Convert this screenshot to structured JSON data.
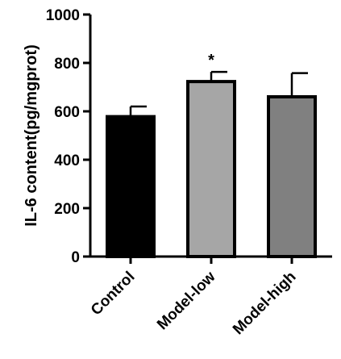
{
  "chart_data": {
    "type": "bar",
    "title": "",
    "xlabel": "",
    "ylabel": "IL-6 content(pg/mgprot)",
    "ylim": [
      0,
      1000
    ],
    "yticks": [
      0,
      200,
      400,
      600,
      800,
      1000
    ],
    "categories": [
      "Control",
      "Model-low",
      "Model-high"
    ],
    "values": [
      578,
      723,
      660
    ],
    "errors": [
      42,
      40,
      98
    ],
    "bar_colors": [
      "#000000",
      "#a6a6a6",
      "#808080"
    ],
    "annotations": [
      "",
      "*",
      ""
    ],
    "grid": false,
    "legend": "none"
  }
}
